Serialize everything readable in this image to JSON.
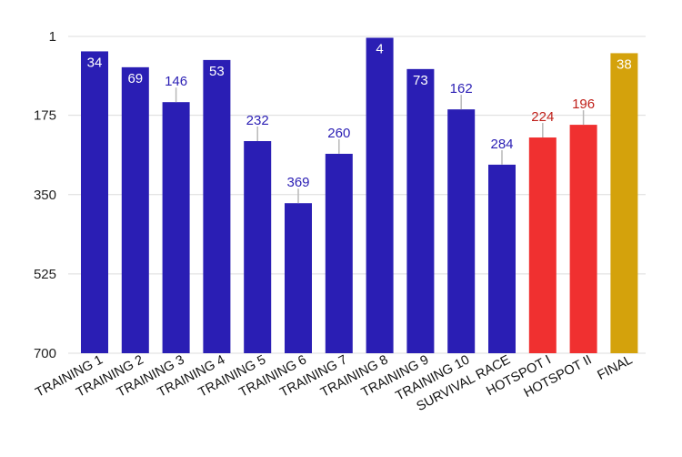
{
  "chart_data": {
    "type": "bar",
    "title": "",
    "xlabel": "",
    "ylabel": "",
    "y_axis_reversed": true,
    "ylim": [
      1,
      700
    ],
    "yticks": [
      "1",
      "175",
      "350",
      "525",
      "700"
    ],
    "ytick_values": [
      1,
      175,
      350,
      525,
      700
    ],
    "grid": true,
    "categories": [
      "TRAINING 1",
      "TRAINING 2",
      "TRAINING 3",
      "TRAINING 4",
      "TRAINING 5",
      "TRAINING 6",
      "TRAINING 7",
      "TRAINING 8",
      "TRAINING 9",
      "TRAINING 10",
      "SURVIVAL RACE",
      "HOTSPOT I",
      "HOTSPOT II",
      "FINAL"
    ],
    "values": [
      34,
      69,
      146,
      53,
      232,
      369,
      260,
      4,
      73,
      162,
      284,
      224,
      196,
      38
    ],
    "labels": [
      "34",
      "69",
      "146",
      "53",
      "232",
      "369",
      "260",
      "4",
      "73",
      "162",
      "284",
      "224",
      "196",
      "38"
    ],
    "bar_colors": [
      "#2a1eb4",
      "#2a1eb4",
      "#2a1eb4",
      "#2a1eb4",
      "#2a1eb4",
      "#2a1eb4",
      "#2a1eb4",
      "#2a1eb4",
      "#2a1eb4",
      "#2a1eb4",
      "#2a1eb4",
      "#f03030",
      "#f03030",
      "#d4a20c"
    ],
    "label_colors": [
      "#ffffff",
      "#ffffff",
      "#2a1eb4",
      "#ffffff",
      "#2a1eb4",
      "#2a1eb4",
      "#2a1eb4",
      "#ffffff",
      "#ffffff",
      "#2a1eb4",
      "#2a1eb4",
      "#c0201a",
      "#c0201a",
      "#ffffff"
    ],
    "label_inside": [
      true,
      true,
      false,
      true,
      false,
      false,
      false,
      true,
      true,
      false,
      false,
      false,
      false,
      true
    ]
  }
}
